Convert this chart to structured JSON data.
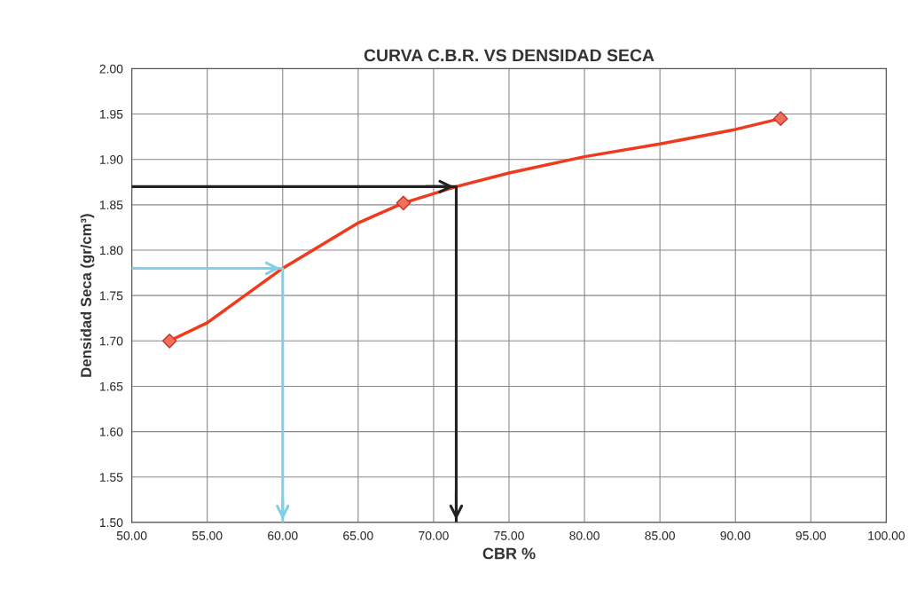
{
  "chart_data": {
    "type": "line",
    "title": "CURVA C.B.R. VS DENSIDAD SECA",
    "xlabel": "CBR %",
    "ylabel": "Densidad Seca (gr/cm³)",
    "xlim": [
      50,
      100
    ],
    "xticks": [
      {
        "value": 50,
        "label": "50.00"
      },
      {
        "value": 55,
        "label": "55.00"
      },
      {
        "value": 60,
        "label": "60.00"
      },
      {
        "value": 65,
        "label": "65.00"
      },
      {
        "value": 70,
        "label": "70.00"
      },
      {
        "value": 75,
        "label": "75.00"
      },
      {
        "value": 80,
        "label": "80.00"
      },
      {
        "value": 85,
        "label": "85.00"
      },
      {
        "value": 90,
        "label": "90.00"
      },
      {
        "value": 95,
        "label": "95.00"
      },
      {
        "value": 100,
        "label": "100.00"
      }
    ],
    "ylim": [
      1.5,
      2.0
    ],
    "yticks": [
      {
        "value": 1.5,
        "label": "1.50"
      },
      {
        "value": 1.55,
        "label": "1.55"
      },
      {
        "value": 1.6,
        "label": "1.60"
      },
      {
        "value": 1.65,
        "label": "1.65"
      },
      {
        "value": 1.7,
        "label": "1.70"
      },
      {
        "value": 1.75,
        "label": "1.75"
      },
      {
        "value": 1.8,
        "label": "1.80"
      },
      {
        "value": 1.85,
        "label": "1.85"
      },
      {
        "value": 1.9,
        "label": "1.90"
      },
      {
        "value": 1.95,
        "label": "1.95"
      },
      {
        "value": 2.0,
        "label": "2.00"
      }
    ],
    "grid": true,
    "series": [
      {
        "color": "#f03a1e",
        "marker": "none",
        "x": [
          52.5,
          55,
          60,
          65,
          68,
          71.5,
          75,
          80,
          85,
          90,
          93
        ],
        "values": [
          1.7,
          1.72,
          1.78,
          1.83,
          1.852,
          1.87,
          1.885,
          1.903,
          1.917,
          1.933,
          1.945
        ]
      },
      {
        "type": "scatter",
        "color": "#f07060",
        "marker": "diamond",
        "x": [
          52.5,
          68,
          93
        ],
        "values": [
          1.7,
          1.852,
          1.945
        ]
      },
      {
        "color": "#222222",
        "marker": "none",
        "x": [
          50,
          71.5,
          71.5
        ],
        "values": [
          1.87,
          1.87,
          1.5
        ]
      },
      {
        "color": "#7fd0e8",
        "marker": "none",
        "x": [
          50,
          60,
          60
        ],
        "values": [
          1.78,
          1.78,
          1.5
        ]
      }
    ]
  }
}
